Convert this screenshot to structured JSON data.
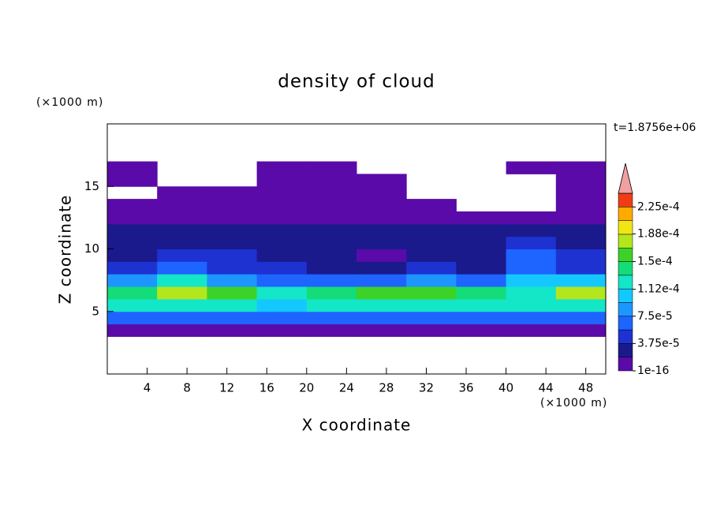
{
  "chart_data": {
    "type": "contour",
    "title": "density of cloud",
    "time_label": "t=1.8756e+06",
    "x_label": "X coordinate",
    "y_label": "Z coordinate",
    "x_unit": "(×1000 m)",
    "y_unit": "(×1000 m)",
    "xlim": [
      0,
      50
    ],
    "ylim": [
      0,
      20
    ],
    "xticks": [
      4,
      8,
      12,
      16,
      20,
      24,
      28,
      32,
      36,
      40,
      44,
      48
    ],
    "yticks": [
      5,
      10,
      15
    ],
    "x": [
      2.5,
      7.5,
      12.5,
      17.5,
      22.5,
      27.5,
      32.5,
      37.5,
      42.5,
      47.5
    ],
    "y": [
      0.5,
      1.5,
      2.5,
      3.5,
      4.5,
      5.5,
      6.5,
      7.5,
      8.5,
      9.5,
      10.5,
      11.5,
      12.5,
      13.5,
      14.5,
      15.5,
      16.5,
      17.5,
      18.5,
      19.5
    ],
    "z": [
      [
        null,
        null,
        null,
        null,
        null,
        null,
        null,
        null,
        null,
        null
      ],
      [
        null,
        null,
        null,
        null,
        null,
        null,
        null,
        null,
        null,
        null
      ],
      [
        null,
        null,
        null,
        null,
        null,
        null,
        null,
        null,
        null,
        null
      ],
      [
        1e-05,
        1e-05,
        1e-05,
        1e-05,
        1e-05,
        1e-05,
        1e-05,
        1e-05,
        1e-05,
        1e-05
      ],
      [
        6e-05,
        6.5e-05,
        6e-05,
        6e-05,
        6.5e-05,
        6e-05,
        6.5e-05,
        6e-05,
        6e-05,
        6.5e-05
      ],
      [
        0.00012,
        0.00013,
        0.00012,
        0.00011,
        0.00012,
        0.000125,
        0.00012,
        0.000115,
        0.00012,
        0.000125
      ],
      [
        0.00014,
        0.00018,
        0.00015,
        0.00013,
        0.00014,
        0.00016,
        0.00015,
        0.00014,
        0.00013,
        0.00017
      ],
      [
        8e-05,
        0.00012,
        9e-05,
        7e-05,
        6e-05,
        7e-05,
        9e-05,
        6e-05,
        0.0001,
        0.0001
      ],
      [
        4e-05,
        6e-05,
        5e-05,
        4e-05,
        3e-05,
        3e-05,
        4e-05,
        3e-05,
        6e-05,
        5e-05
      ],
      [
        3e-05,
        4e-05,
        5e-05,
        3e-05,
        2e-05,
        1.5e-05,
        3e-05,
        3e-05,
        6e-05,
        4e-05
      ],
      [
        2.5e-05,
        3e-05,
        3e-05,
        2.5e-05,
        2e-05,
        2.5e-05,
        3e-05,
        2.5e-05,
        4e-05,
        3e-05
      ],
      [
        2e-05,
        2e-05,
        2e-05,
        2e-05,
        2e-05,
        2e-05,
        2e-05,
        2e-05,
        2e-05,
        2e-05
      ],
      [
        1e-05,
        1e-05,
        1e-05,
        1e-05,
        1e-05,
        1e-05,
        1e-05,
        1e-05,
        1e-05,
        1e-05
      ],
      [
        1e-05,
        1e-05,
        1e-05,
        1e-05,
        1e-05,
        1e-05,
        1e-05,
        null,
        null,
        1e-05
      ],
      [
        null,
        1e-05,
        1e-05,
        1e-05,
        1e-05,
        1e-05,
        null,
        null,
        null,
        1e-05
      ],
      [
        1e-05,
        null,
        null,
        1e-05,
        1e-05,
        1e-05,
        null,
        null,
        null,
        1e-05
      ],
      [
        1e-05,
        null,
        null,
        1e-05,
        1e-05,
        null,
        null,
        null,
        1e-05,
        1e-05
      ],
      [
        null,
        null,
        null,
        null,
        null,
        null,
        null,
        null,
        null,
        null
      ],
      [
        null,
        null,
        null,
        null,
        null,
        null,
        null,
        null,
        null,
        null
      ],
      [
        null,
        null,
        null,
        null,
        null,
        null,
        null,
        null,
        null,
        null
      ]
    ],
    "levels": [
      1e-16,
      1.875e-05,
      3.75e-05,
      5.625e-05,
      7.5e-05,
      9.375e-05,
      0.0001125,
      0.00013125,
      0.00015,
      0.00016875,
      0.0001875,
      0.00020625,
      0.000225,
      0.00024375
    ],
    "colors": [
      "#5a0aa8",
      "#1a1a8c",
      "#1e32d2",
      "#1e64ff",
      "#1e96ff",
      "#14c8ff",
      "#14e6c8",
      "#14dc78",
      "#3cd228",
      "#b4e61e",
      "#f0e614",
      "#ffaa00",
      "#f03c14"
    ],
    "extend_color": "#f0a0a0",
    "colorbar_ticks": [
      {
        "value": 1e-16,
        "label": "1e-16"
      },
      {
        "value": 3.75e-05,
        "label": "3.75e-5"
      },
      {
        "value": 7.5e-05,
        "label": "7.5e-5"
      },
      {
        "value": 0.000112,
        "label": "1.12e-4"
      },
      {
        "value": 0.00015,
        "label": "1.5e-4"
      },
      {
        "value": 0.000188,
        "label": "1.88e-4"
      },
      {
        "value": 0.000225,
        "label": "2.25e-4"
      }
    ]
  }
}
